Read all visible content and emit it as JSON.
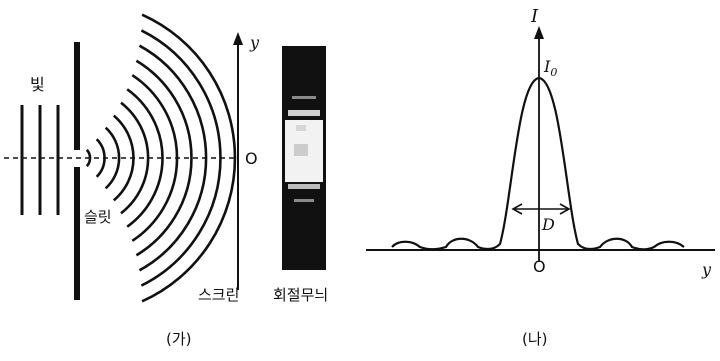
{
  "panel_a": {
    "label": "(가)",
    "light_label": "빛",
    "slit_label": "슬릿",
    "screen_label": "스크린",
    "pattern_label": "회절무늬",
    "origin_label": "O",
    "axis_y_label": "y"
  },
  "panel_b": {
    "label": "(나)",
    "axis_i_label": "I",
    "peak_label": "I",
    "peak_subscript": "0",
    "width_label": "D",
    "origin_label": "O",
    "axis_y_label": "y"
  }
}
